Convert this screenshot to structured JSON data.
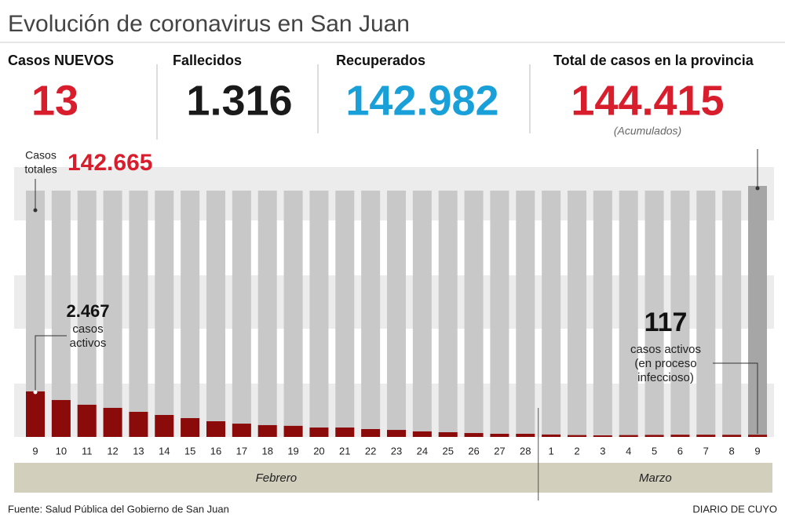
{
  "header": {
    "title": "Evolución de coronavirus en San Juan",
    "stats": [
      {
        "label": "Casos NUEVOS",
        "value": "13",
        "color": "#d81e2c"
      },
      {
        "label": "Fallecidos",
        "value": "1.316",
        "color": "#1a1a1a"
      },
      {
        "label": "Recuperados",
        "value": "142.982",
        "color": "#1aa0d8"
      },
      {
        "label": "Total de casos en la provincia",
        "value": "144.415",
        "color": "#d81e2c",
        "note": "(Acumulados)"
      }
    ]
  },
  "chart_data": {
    "type": "bar",
    "categories": [
      "9",
      "10",
      "11",
      "12",
      "13",
      "14",
      "15",
      "16",
      "17",
      "18",
      "19",
      "20",
      "21",
      "22",
      "23",
      "24",
      "25",
      "26",
      "27",
      "28",
      "1",
      "2",
      "3",
      "4",
      "5",
      "6",
      "7",
      "8",
      "9"
    ],
    "values": [
      2467,
      2000,
      1745,
      1575,
      1360,
      1190,
      1020,
      850,
      720,
      640,
      600,
      510,
      510,
      425,
      380,
      300,
      255,
      210,
      170,
      170,
      130,
      100,
      85,
      100,
      110,
      120,
      120,
      115,
      117
    ],
    "value_labels": [
      "2.467",
      null,
      null,
      null,
      null,
      null,
      null,
      null,
      null,
      null,
      null,
      null,
      null,
      null,
      null,
      null,
      null,
      null,
      null,
      null,
      null,
      null,
      null,
      null,
      null,
      null,
      null,
      null,
      "117"
    ],
    "color": "#8b0a0a",
    "ylim": [
      0,
      13350
    ],
    "totals_label": [
      "Casos",
      "totales"
    ],
    "totals_value": "142.665",
    "first_note": [
      "casos",
      "activos"
    ],
    "last_note": [
      "casos activos",
      "(en proceso",
      "infeccioso)"
    ],
    "months": [
      "Febrero",
      "Marzo"
    ]
  },
  "footer": {
    "source": "Fuente: Salud Pública del Gobierno de San Juan",
    "brand": "DIARIO DE CUYO"
  }
}
